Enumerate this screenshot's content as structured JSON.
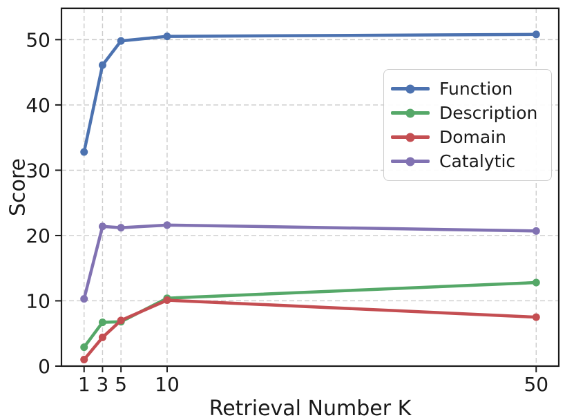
{
  "chart_data": {
    "type": "line",
    "title": "",
    "xlabel": "Retrieval Number K",
    "ylabel": "Score",
    "x": [
      1,
      3,
      5,
      10,
      50
    ],
    "xticks": [
      1,
      3,
      5,
      10,
      50
    ],
    "yticks": [
      0,
      10,
      20,
      30,
      40,
      50
    ],
    "xlim": [
      -1.45,
      52.45
    ],
    "ylim": [
      0,
      54.8
    ],
    "grid": "dashed-both-axes",
    "legend_position": "upper-right",
    "series": [
      {
        "name": "Function",
        "color": "#4C72B0",
        "values": [
          32.8,
          46.1,
          49.8,
          50.5,
          50.8
        ]
      },
      {
        "name": "Description",
        "color": "#55A868",
        "values": [
          2.9,
          6.7,
          6.8,
          10.4,
          12.8
        ]
      },
      {
        "name": "Domain",
        "color": "#C44E52",
        "values": [
          1.0,
          4.4,
          7.0,
          10.1,
          7.5
        ]
      },
      {
        "name": "Catalytic",
        "color": "#8172B2",
        "values": [
          10.3,
          21.4,
          21.2,
          21.6,
          20.7
        ]
      }
    ],
    "style": {
      "grid_color": "#cccccc",
      "spine_color": "#1a1a1a",
      "tick_label_color": "#1a1a1a"
    }
  }
}
